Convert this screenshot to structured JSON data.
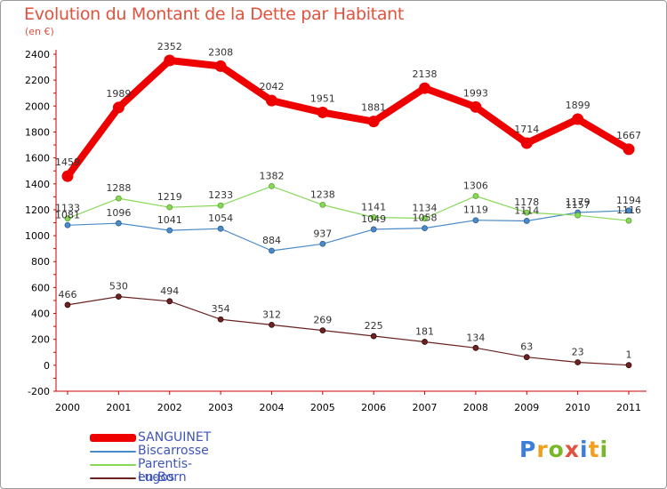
{
  "title": "Evolution du Montant de la Dette par Habitant",
  "unit": "(en €)",
  "logo": {
    "text": "Proxiti",
    "letter_colors": [
      "#3c7ed8",
      "#f0a020",
      "#79b729",
      "#e0523e",
      "#3c7ed8",
      "#f0a020",
      "#79b729"
    ]
  },
  "chart_data": {
    "type": "line",
    "title": "Evolution du Montant de la Dette par Habitant",
    "ylabel": "(en €)",
    "xlabel": "",
    "x": [
      "2000",
      "2001",
      "2002",
      "2003",
      "2004",
      "2005",
      "2006",
      "2007",
      "2008",
      "2009",
      "2010",
      "2011"
    ],
    "ylim": [
      -200,
      2400
    ],
    "yticks": [
      -200,
      0,
      200,
      400,
      600,
      800,
      1000,
      1200,
      1400,
      1600,
      1800,
      2000,
      2200,
      2400
    ],
    "grid": false,
    "legend_position": "bottom-left",
    "series": [
      {
        "name": "SANGUINET",
        "color": "#ee0000",
        "values": [
          1459,
          1989,
          2352,
          2308,
          2042,
          1951,
          1881,
          2138,
          1993,
          1714,
          1899,
          1667
        ]
      },
      {
        "name": "Biscarrosse",
        "color": "#4a8ac8",
        "values": [
          1081,
          1096,
          1041,
          1054,
          884,
          937,
          1049,
          1058,
          1119,
          1114,
          1179,
          1194
        ]
      },
      {
        "name": "Parentis-en-Born",
        "color": "#88d858",
        "values": [
          1133,
          1288,
          1219,
          1233,
          1382,
          1238,
          1141,
          1134,
          1306,
          1178,
          1157,
          1116
        ]
      },
      {
        "name": "Lugos",
        "color": "#6a2222",
        "values": [
          466,
          530,
          494,
          354,
          312,
          269,
          225,
          181,
          134,
          63,
          23,
          1
        ]
      }
    ]
  }
}
